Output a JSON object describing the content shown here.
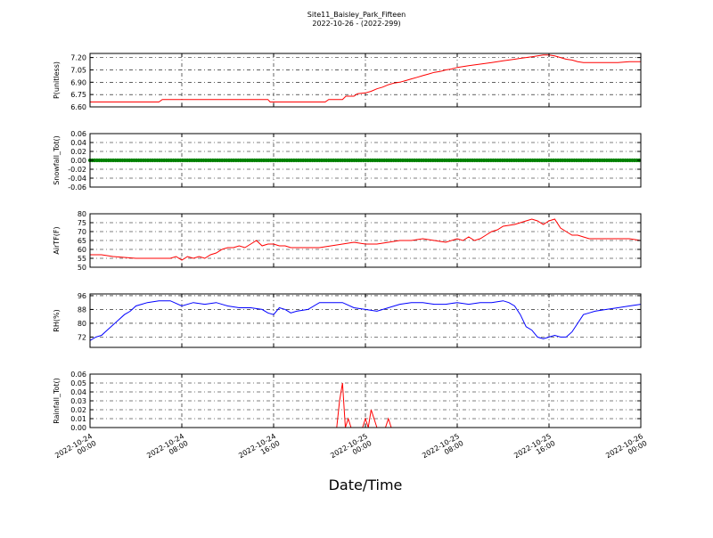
{
  "title": "Site11_Baisley_Park_Fifteen",
  "subtitle": "2022-10-26 - (2022-299)",
  "xlabel": "Date/Time",
  "x_ticks": [
    {
      "line1": "2022-10-24",
      "line2": "00:00",
      "hour": 0
    },
    {
      "line1": "2022-10-24",
      "line2": "08:00",
      "hour": 8
    },
    {
      "line1": "2022-10-24",
      "line2": "16:00",
      "hour": 16
    },
    {
      "line1": "2022-10-25",
      "line2": "00:00",
      "hour": 24
    },
    {
      "line1": "2022-10-25",
      "line2": "08:00",
      "hour": 32
    },
    {
      "line1": "2022-10-25",
      "line2": "16:00",
      "hour": 40
    },
    {
      "line1": "2022-10-26",
      "line2": "00:00",
      "hour": 48
    }
  ],
  "chart_data": [
    {
      "type": "line",
      "ylabel": "P(unitless)",
      "ylim": [
        6.6,
        7.25
      ],
      "yticks": [
        "6.60",
        "6.75",
        "6.90",
        "7.05",
        "7.20"
      ],
      "ytick_values": [
        6.6,
        6.75,
        6.9,
        7.05,
        7.2
      ],
      "color": "#ff0000",
      "grid": true,
      "x_hours": [
        0,
        6,
        6.3,
        15.5,
        15.7,
        20.5,
        20.8,
        22,
        22.3,
        23,
        23.3,
        24,
        24.5,
        25,
        25.5,
        26,
        26.5,
        27,
        27.5,
        28,
        28.5,
        29,
        29.5,
        30,
        30.5,
        31,
        31.5,
        32,
        32.5,
        33,
        33.5,
        34,
        34.5,
        35,
        35.5,
        36,
        36.5,
        37,
        37.5,
        38,
        38.5,
        39,
        39.5,
        40,
        40.5,
        41,
        41.5,
        42,
        42.5,
        43,
        44,
        45,
        46,
        47,
        48
      ],
      "values": [
        6.66,
        6.66,
        6.69,
        6.69,
        6.66,
        6.66,
        6.69,
        6.69,
        6.73,
        6.73,
        6.76,
        6.77,
        6.79,
        6.82,
        6.84,
        6.87,
        6.89,
        6.9,
        6.92,
        6.94,
        6.96,
        6.98,
        7.0,
        7.02,
        7.03,
        7.05,
        7.06,
        7.08,
        7.09,
        7.1,
        7.11,
        7.12,
        7.13,
        7.14,
        7.15,
        7.16,
        7.17,
        7.18,
        7.19,
        7.2,
        7.21,
        7.22,
        7.23,
        7.23,
        7.22,
        7.2,
        7.18,
        7.17,
        7.15,
        7.14,
        7.14,
        7.14,
        7.14,
        7.15,
        7.15
      ]
    },
    {
      "type": "scatter",
      "ylabel": "Snowfall_Tot()",
      "ylim": [
        -0.06,
        0.06
      ],
      "yticks": [
        "0.06",
        "0.04",
        "0.02",
        "0.00",
        "-0.02",
        "-0.04",
        "-0.06"
      ],
      "ytick_values": [
        0.06,
        0.04,
        0.02,
        0.0,
        -0.02,
        -0.04,
        -0.06
      ],
      "color": "#008000",
      "grid": true,
      "x_hours": [
        0,
        48
      ],
      "values": [
        0,
        0
      ]
    },
    {
      "type": "line",
      "ylabel": "AirTF(F)",
      "ylim": [
        50,
        80
      ],
      "yticks": [
        "80",
        "75",
        "70",
        "65",
        "60",
        "55",
        "50"
      ],
      "ytick_values": [
        80,
        75,
        70,
        65,
        60,
        55,
        50
      ],
      "color": "#ff0000",
      "grid": true,
      "x_hours": [
        0,
        1,
        2,
        3,
        4,
        5,
        6,
        7,
        7.5,
        8,
        8.5,
        9,
        9.5,
        10,
        10.5,
        11,
        11.5,
        12,
        12.5,
        13,
        13.5,
        14,
        14.5,
        15,
        15.5,
        16,
        16.5,
        17,
        17.5,
        18,
        19,
        20,
        21,
        22,
        23,
        24,
        25,
        26,
        27,
        28,
        29,
        30,
        31,
        32,
        32.5,
        33,
        33.5,
        34,
        34.5,
        35,
        35.5,
        36,
        37,
        38,
        38.5,
        39,
        39.5,
        40,
        40.5,
        41,
        41.5,
        42,
        42.5,
        43,
        43.5,
        44,
        45,
        46,
        47,
        48
      ],
      "values": [
        57,
        57,
        56,
        55.5,
        55,
        55,
        55,
        55,
        56,
        54,
        56,
        55,
        56,
        55,
        57,
        58,
        60,
        61,
        61,
        62,
        61,
        63,
        65,
        62,
        63,
        63,
        62,
        62,
        61,
        61,
        61,
        61,
        62,
        63,
        64,
        63,
        63,
        64,
        65,
        65,
        66,
        65,
        64,
        66,
        65,
        67,
        65,
        66,
        68,
        70,
        71,
        73,
        74,
        76,
        77,
        76,
        74,
        76,
        77,
        72,
        70,
        68,
        68,
        67,
        66,
        66,
        66,
        66,
        66,
        65
      ]
    },
    {
      "type": "line",
      "ylabel": "RH(%)",
      "ylim": [
        66,
        97
      ],
      "yticks": [
        "96",
        "88",
        "80",
        "72"
      ],
      "ytick_values": [
        96,
        88,
        80,
        72
      ],
      "color": "#0000ff",
      "grid": true,
      "x_hours": [
        0,
        0.5,
        1,
        1.5,
        2,
        2.5,
        3,
        3.5,
        4,
        4.5,
        5,
        6,
        7,
        8,
        9,
        10,
        11,
        12,
        13,
        14,
        15,
        15.5,
        16,
        16.5,
        17,
        17.5,
        18,
        19,
        20,
        21,
        22,
        23,
        24,
        25,
        26,
        27,
        28,
        29,
        30,
        31,
        32,
        33,
        34,
        35,
        36,
        36.5,
        37,
        37.5,
        38,
        38.5,
        39,
        39.5,
        40,
        40.5,
        41,
        41.5,
        42,
        42.5,
        43,
        43.5,
        44,
        45,
        46,
        47,
        48
      ],
      "values": [
        70,
        72,
        73,
        76,
        79,
        82,
        85,
        87,
        90,
        91,
        92,
        93,
        93,
        90,
        92,
        91,
        92,
        90,
        89,
        89,
        88,
        86,
        85,
        89,
        88,
        86,
        87,
        88,
        92,
        92,
        92,
        89,
        88,
        87,
        89,
        91,
        92,
        92,
        91,
        91,
        92,
        91,
        92,
        92,
        93,
        92,
        90,
        85,
        78,
        76,
        72,
        71,
        72,
        73,
        72,
        72,
        75,
        80,
        85,
        86,
        87,
        88,
        89,
        90,
        91
      ]
    },
    {
      "type": "line",
      "ylabel": "Rainfall_Tot()",
      "ylim": [
        0,
        0.06
      ],
      "yticks": [
        "0.06",
        "0.05",
        "0.04",
        "0.03",
        "0.02",
        "0.01",
        "0.00"
      ],
      "ytick_values": [
        0.06,
        0.05,
        0.04,
        0.03,
        0.02,
        0.01,
        0.0
      ],
      "color": "#ff0000",
      "grid": true,
      "x_hours": [
        0,
        21.5,
        21.75,
        22,
        22.25,
        22.5,
        22.75,
        23,
        23.75,
        24,
        24.25,
        24.5,
        24.75,
        25,
        25.25,
        25.5,
        25.75,
        26,
        26.25,
        26.5,
        48
      ],
      "values": [
        0,
        0,
        0.03,
        0.05,
        0,
        0.01,
        0,
        0,
        0,
        0.01,
        0,
        0.02,
        0.01,
        0,
        0,
        0,
        0,
        0.01,
        0,
        0,
        0
      ]
    }
  ]
}
